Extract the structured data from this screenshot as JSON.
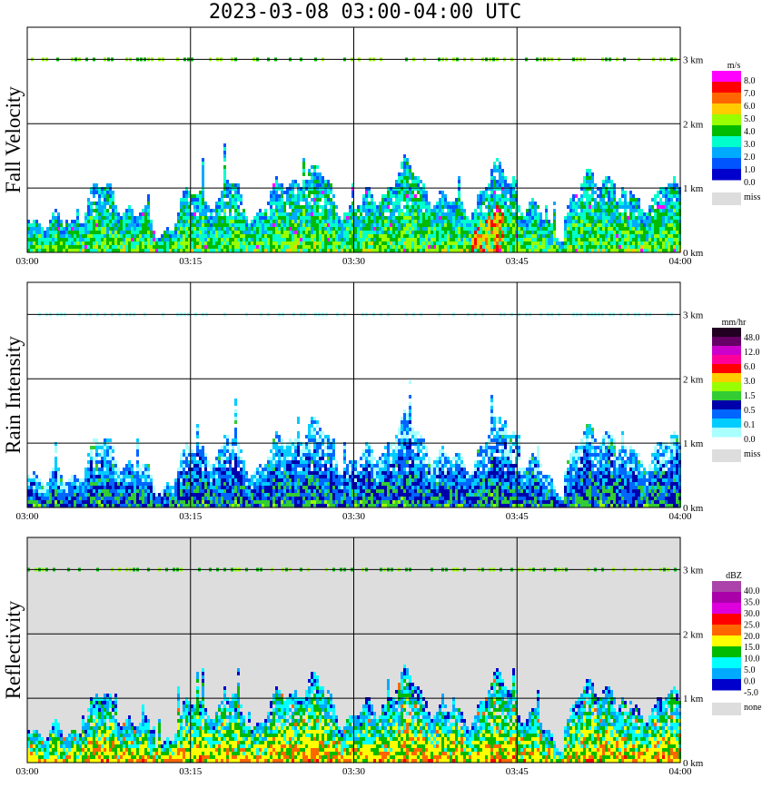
{
  "title": "2023-03-08   03:00-04:00 UTC",
  "chart_data": [
    {
      "type": "heatmap",
      "ylabel": "Fall Velocity",
      "background": "#ffffff",
      "x_ticks": [
        "03:00",
        "03:15",
        "03:30",
        "03:45",
        "04:00"
      ],
      "y_ticks": [
        "0 km",
        "1 km",
        "2 km",
        "3 km"
      ],
      "xlim": [
        "03:00",
        "04:00"
      ],
      "ylim_km": [
        0,
        3.5
      ],
      "grid": true,
      "colorbar": {
        "unit": "m/s",
        "labels": [
          "8.0",
          "7.0",
          "6.0",
          "5.0",
          "4.0",
          "3.0",
          "2.0",
          "1.0",
          "0.0"
        ],
        "colors": [
          "#ff00ff",
          "#ff0000",
          "#ff6600",
          "#ffcc00",
          "#99ff00",
          "#00bb00",
          "#00ffcc",
          "#00aaff",
          "#0055ff",
          "#0000cc"
        ],
        "missing_label": "miss",
        "missing_color": "#dddddd"
      }
    },
    {
      "type": "heatmap",
      "ylabel": "Rain Intensity",
      "background": "#ffffff",
      "x_ticks": [
        "03:00",
        "03:15",
        "03:30",
        "03:45",
        "04:00"
      ],
      "y_ticks": [
        "0 km",
        "1 km",
        "2 km",
        "3 km"
      ],
      "xlim": [
        "03:00",
        "04:00"
      ],
      "ylim_km": [
        0,
        3.5
      ],
      "grid": true,
      "colorbar": {
        "unit": "mm/hr",
        "labels": [
          "48.0",
          "12.0",
          "6.0",
          "3.0",
          "1.5",
          "0.5",
          "0.1",
          "0.0"
        ],
        "colors": [
          "#220022",
          "#660066",
          "#cc00cc",
          "#ff0099",
          "#ff0000",
          "#ffcc00",
          "#99ff00",
          "#33cc33",
          "#0000aa",
          "#0066ff",
          "#00ccff",
          "#aaffff"
        ],
        "missing_label": "miss",
        "missing_color": "#dddddd"
      }
    },
    {
      "type": "heatmap",
      "ylabel": "Reflectivity",
      "background": "#dddddd",
      "x_ticks": [
        "03:00",
        "03:15",
        "03:30",
        "03:45",
        "04:00"
      ],
      "y_ticks": [
        "0 km",
        "1 km",
        "2 km",
        "3 km"
      ],
      "xlim": [
        "03:00",
        "04:00"
      ],
      "ylim_km": [
        0,
        3.5
      ],
      "grid": true,
      "colorbar": {
        "unit": "dBZ",
        "labels": [
          "40.0",
          "35.0",
          "30.0",
          "25.0",
          "20.0",
          "15.0",
          "10.0",
          "5.0",
          "0.0",
          "-5.0"
        ],
        "colors": [
          "#aa44aa",
          "#aa00aa",
          "#dd00dd",
          "#ff0000",
          "#ff6600",
          "#ffff00",
          "#00bb00",
          "#00ffff",
          "#00aaff",
          "#0000cc"
        ],
        "missing_label": "none",
        "missing_color": "#dddddd"
      }
    }
  ]
}
